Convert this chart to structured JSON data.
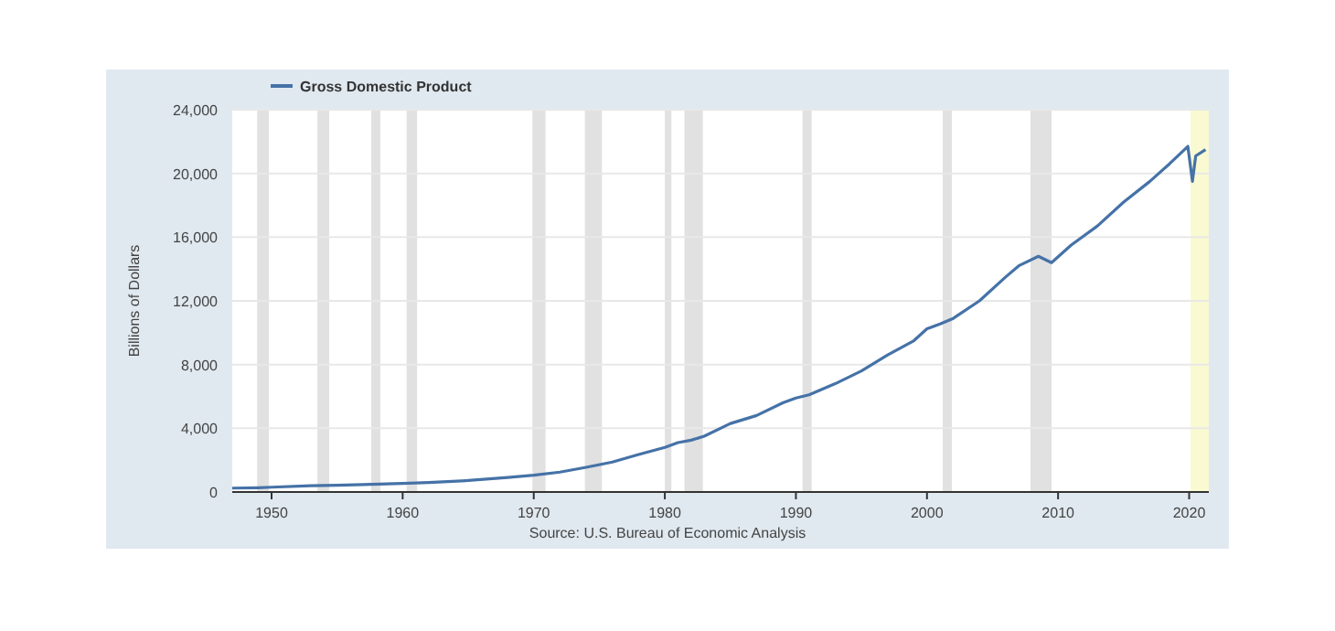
{
  "chart_data": {
    "type": "line",
    "ylabel": "Billions of Dollars",
    "legend": "top left",
    "grid": "y",
    "annotations": [
      "Source: U.S. Bureau of Economic Analysis"
    ],
    "xlim": [
      1947,
      2021.5
    ],
    "xticks": [
      1950,
      1960,
      1970,
      1980,
      1990,
      2000,
      2010,
      2020
    ],
    "ylim": [
      0,
      24000
    ],
    "yticks": [
      {
        "value": 0,
        "label": "0"
      },
      {
        "value": 4000,
        "label": "4,000"
      },
      {
        "value": 8000,
        "label": "8,000"
      },
      {
        "value": 12000,
        "label": "12,000"
      },
      {
        "value": 16000,
        "label": "16,000"
      },
      {
        "value": 20000,
        "label": "20,000"
      },
      {
        "value": 24000,
        "label": "24,000"
      }
    ],
    "bands": [
      {
        "axis": "x",
        "from": 1948.9,
        "to": 1949.8,
        "color": "#e1e1e1"
      },
      {
        "axis": "x",
        "from": 1953.5,
        "to": 1954.4,
        "color": "#e1e1e1"
      },
      {
        "axis": "x",
        "from": 1957.6,
        "to": 1958.3,
        "color": "#e1e1e1"
      },
      {
        "axis": "x",
        "from": 1960.3,
        "to": 1961.1,
        "color": "#e1e1e1"
      },
      {
        "axis": "x",
        "from": 1969.9,
        "to": 1970.9,
        "color": "#e1e1e1"
      },
      {
        "axis": "x",
        "from": 1973.9,
        "to": 1975.2,
        "color": "#e1e1e1"
      },
      {
        "axis": "x",
        "from": 1980.0,
        "to": 1980.5,
        "color": "#e1e1e1"
      },
      {
        "axis": "x",
        "from": 1981.5,
        "to": 1982.9,
        "color": "#e1e1e1"
      },
      {
        "axis": "x",
        "from": 1990.5,
        "to": 1991.2,
        "color": "#e1e1e1"
      },
      {
        "axis": "x",
        "from": 2001.2,
        "to": 2001.9,
        "color": "#e1e1e1"
      },
      {
        "axis": "x",
        "from": 2007.9,
        "to": 2009.5,
        "color": "#e1e1e1"
      },
      {
        "axis": "x",
        "from": 2020.1,
        "to": 2021.5,
        "color": "#fafad2"
      }
    ],
    "series": [
      {
        "name": "Gross Domestic Product",
        "color": "#4572a7",
        "x": [
          1947,
          1949,
          1950,
          1953,
          1955,
          1957,
          1960,
          1962,
          1965,
          1968,
          1970,
          1972,
          1974,
          1976,
          1978,
          1980,
          1981,
          1982,
          1983,
          1985,
          1987,
          1989,
          1990,
          1991,
          1993,
          1995,
          1997,
          1999,
          2000,
          2001,
          2002,
          2004,
          2006,
          2007,
          2008.5,
          2009.5,
          2011,
          2013,
          2015,
          2017,
          2018.5,
          2019.9,
          2020.25,
          2020.5,
          2021.25
        ],
        "values": [
          243,
          270,
          300,
          390,
          426,
          470,
          543,
          600,
          720,
          910,
          1053,
          1250,
          1550,
          1880,
          2350,
          2800,
          3100,
          3250,
          3500,
          4300,
          4800,
          5600,
          5900,
          6100,
          6800,
          7600,
          8600,
          9500,
          10250,
          10550,
          10900,
          12000,
          13500,
          14200,
          14800,
          14400,
          15500,
          16700,
          18200,
          19500,
          20600,
          21700,
          19500,
          21100,
          21500
        ]
      }
    ]
  }
}
